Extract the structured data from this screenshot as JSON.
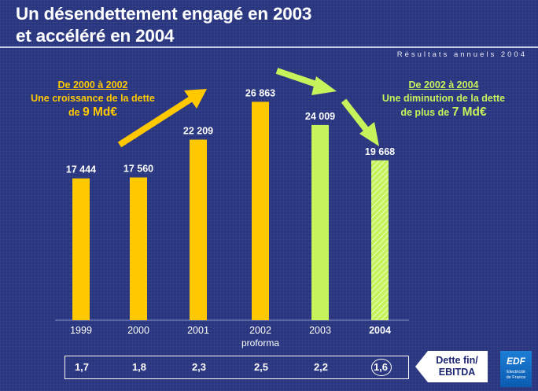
{
  "title_line1": "Un désendettement engagé en 2003",
  "title_line2": "et accéléré en 2004",
  "subtitle": "Résultats annuels 2004",
  "annotation_left": {
    "head": "De 2000 à 2002",
    "line2": "Une croissance de la dette",
    "line3_prefix": "de",
    "line3_value": "9 Md€"
  },
  "annotation_right": {
    "head": "De 2002 à 2004",
    "line2": "Une diminution de la dette",
    "line3_prefix": "de plus de",
    "line3_value": "7 Md€"
  },
  "ratio": {
    "label_line1": "Dette fin/",
    "label_line2": "EBITDA",
    "values": [
      "1,7",
      "1,8",
      "2,3",
      "2,5",
      "2,2",
      "1,6"
    ]
  },
  "logo": {
    "mark": "EDF",
    "text_line1": "Electricité",
    "text_line2": "de France"
  },
  "colors": {
    "background": "#29367f",
    "growth": "#ffc800",
    "decline": "#c6f25c",
    "text": "#ffffff"
  },
  "chart_data": {
    "type": "bar",
    "categories": [
      "1999",
      "2000",
      "2001",
      "2002",
      "2003",
      "2004"
    ],
    "category_sublabels": [
      "",
      "",
      "",
      "proforma",
      "",
      ""
    ],
    "values": [
      17444,
      17560,
      22209,
      26863,
      24009,
      19668
    ],
    "value_labels": [
      "17 444",
      "17 560",
      "22 209",
      "26 863",
      "24 009",
      "19 668"
    ],
    "bar_colors": [
      "#ffc800",
      "#ffc800",
      "#ffc800",
      "#ffc800",
      "#c6f25c",
      "#c6f25c"
    ],
    "hatched": [
      false,
      false,
      false,
      false,
      false,
      true
    ],
    "bold_category": "2004",
    "ylim": [
      0,
      30000
    ],
    "grid": false
  }
}
